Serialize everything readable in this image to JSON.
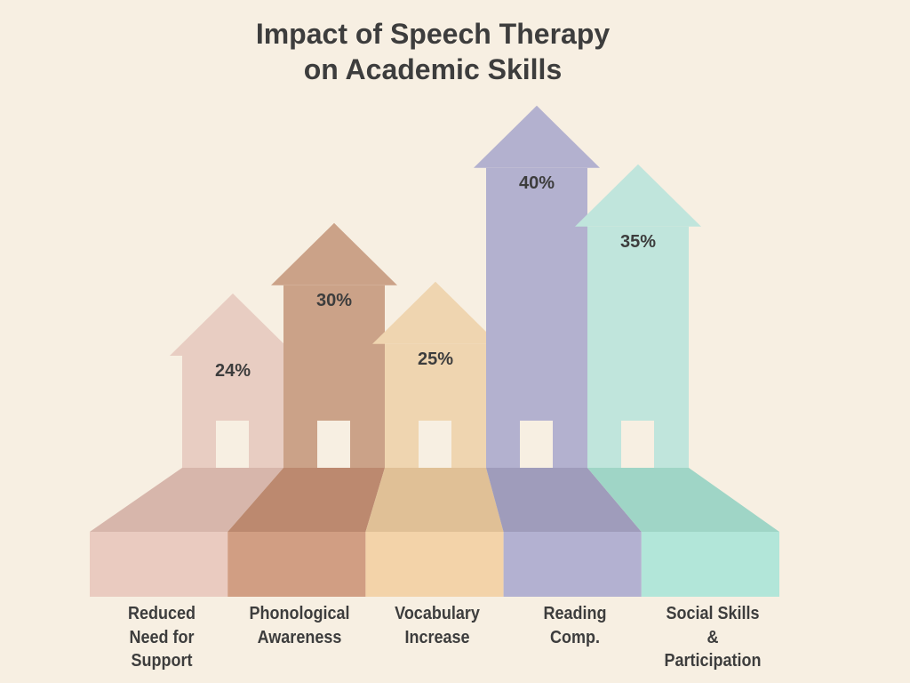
{
  "chart_data": {
    "type": "bar",
    "style": "arrow-infographic",
    "title": [
      "Impact of Speech Therapy",
      "on Academic Skills"
    ],
    "categories": [
      [
        "Reduced",
        "Need for",
        "Support"
      ],
      [
        "Phonological",
        "Awareness"
      ],
      [
        "Vocabulary",
        "Increase"
      ],
      [
        "Reading",
        "Comp."
      ],
      [
        "Social Skills",
        "&",
        "Participation"
      ]
    ],
    "values": [
      24,
      30,
      25,
      40,
      35
    ],
    "value_labels": [
      "24%",
      "30%",
      "25%",
      "40%",
      "35%"
    ],
    "unit": "%",
    "colors": {
      "shaft": [
        "#e8cdc2",
        "#cba288",
        "#efd5b0",
        "#b3b1cf",
        "#c0e5dc"
      ],
      "top": [
        "#d7b6ab",
        "#bc896f",
        "#e0c096",
        "#9f9cbb",
        "#9fd5c6"
      ],
      "front": [
        "#eacbc0",
        "#d19e83",
        "#f3d3a9",
        "#b3b1d1",
        "#b2e6d9"
      ],
      "door": "#f7efe2",
      "background": "#f7efe2",
      "text": "#3d3d3d"
    }
  }
}
